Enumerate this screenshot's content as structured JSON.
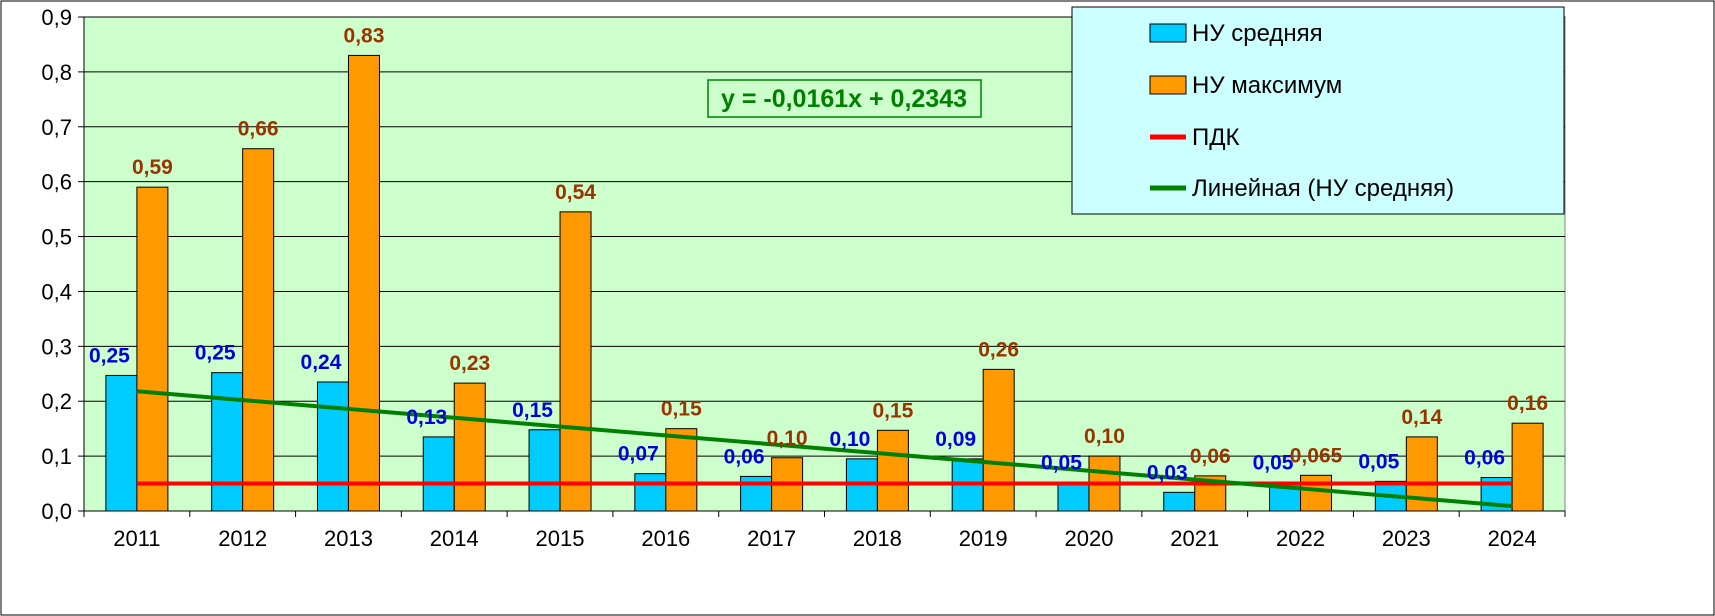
{
  "chart_data": {
    "type": "bar",
    "categories": [
      "2011",
      "2012",
      "2013",
      "2014",
      "2015",
      "2016",
      "2017",
      "2018",
      "2019",
      "2020",
      "2021",
      "2022",
      "2023",
      "2024"
    ],
    "ylim": [
      0,
      0.9
    ],
    "yticks": [
      0,
      0.1,
      0.2,
      0.3,
      0.4,
      0.5,
      0.6,
      0.7,
      0.8,
      0.9
    ],
    "ytick_labels": [
      "0,0",
      "0,1",
      "0,2",
      "0,3",
      "0,4",
      "0,5",
      "0,6",
      "0,7",
      "0,8",
      "0,9"
    ],
    "grid": true,
    "legend_position": "top-right",
    "series": [
      {
        "name": "НУ средняя",
        "kind": "bar",
        "color": "#00CCFF",
        "label_color": "#0000DD",
        "values": [
          0.247,
          0.252,
          0.235,
          0.135,
          0.148,
          0.068,
          0.063,
          0.095,
          0.095,
          0.052,
          0.034,
          0.052,
          0.054,
          0.061
        ],
        "labels": [
          "0,25",
          "0,25",
          "0,24",
          "0,13",
          "0,15",
          "0,07",
          "0,06",
          "0,10",
          "0,09",
          "0,05",
          "0,03",
          "0,05",
          "0,05",
          "0,06"
        ]
      },
      {
        "name": "НУ максимум",
        "kind": "bar",
        "color": "#FF9900",
        "label_color": "#993300",
        "values": [
          0.59,
          0.66,
          0.83,
          0.233,
          0.545,
          0.15,
          0.097,
          0.147,
          0.258,
          0.1,
          0.064,
          0.065,
          0.135,
          0.16
        ],
        "labels": [
          "0,59",
          "0,66",
          "0,83",
          "0,23",
          "0,54",
          "0,15",
          "0,10",
          "0,15",
          "0,26",
          "0,10",
          "0,06",
          "0,065",
          "0,14",
          "0,16"
        ]
      },
      {
        "name": "ПДК",
        "kind": "line",
        "color": "#FF0000",
        "value": 0.05
      },
      {
        "name": "Линейная (НУ средняя)",
        "kind": "trendline",
        "color": "#008000",
        "slope": -0.0161,
        "intercept": 0.2343,
        "equation": "y = -0,0161x + 0,2343"
      }
    ]
  },
  "colors": {
    "plot_background": "#CCFFCC",
    "legend_background": "#CCFFFF",
    "equation_color": "#008000"
  }
}
